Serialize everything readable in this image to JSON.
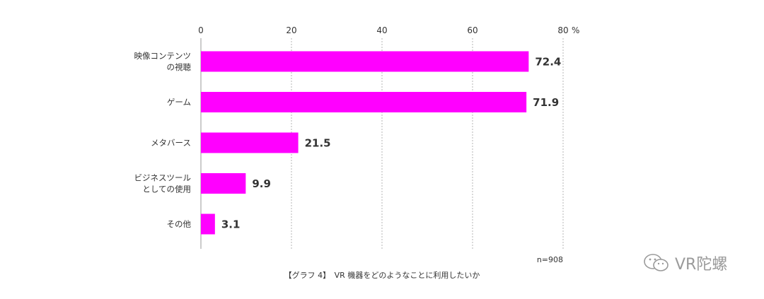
{
  "chart_data": {
    "type": "bar",
    "orientation": "horizontal",
    "categories": [
      [
        "映像コンテンツ",
        "の視聴"
      ],
      [
        "ゲーム"
      ],
      [
        "メタバース"
      ],
      [
        "ビジネスツール",
        "としての使用"
      ],
      [
        "その他"
      ]
    ],
    "values": [
      72.4,
      71.9,
      21.5,
      9.9,
      3.1
    ],
    "value_labels": [
      "72.4",
      "71.9",
      "21.5",
      "9.9",
      "3.1"
    ],
    "xlim": [
      0,
      80
    ],
    "ticks": [
      0,
      20,
      40,
      60,
      80
    ],
    "tick_labels": [
      "0",
      "20",
      "40",
      "60",
      "80"
    ],
    "unit": "%",
    "bar_color": "#ff00ff",
    "grid": true,
    "note": "n=908",
    "caption": "【グラフ 4】　VR 機器をどのようなことに利用したいか"
  },
  "watermark": {
    "text": "VR陀螺",
    "icon": "wechat-icon"
  }
}
